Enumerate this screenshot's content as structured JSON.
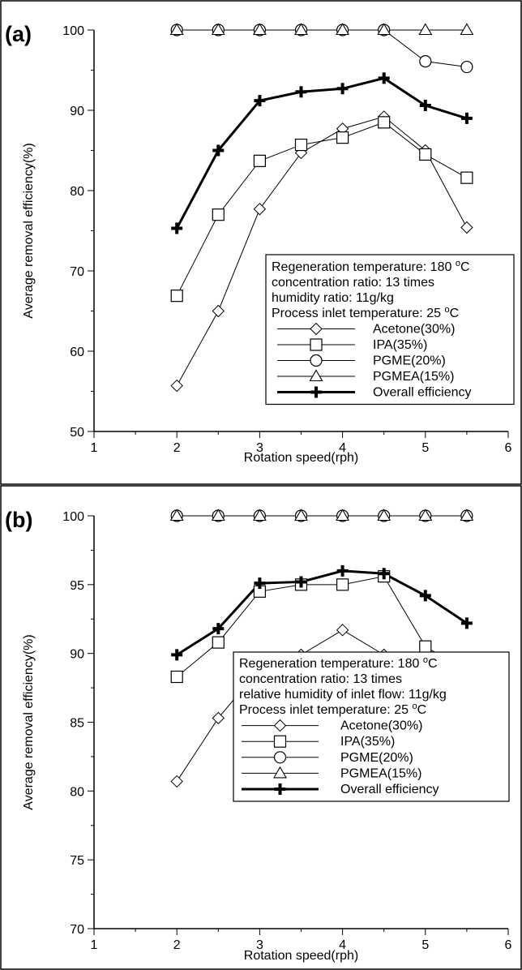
{
  "chart_data": [
    {
      "type": "line",
      "panel_label": "(a)",
      "xlabel": "Rotation speed(rph)",
      "ylabel": "Average removal efficiency(%)",
      "xlim": [
        1,
        6
      ],
      "ylim": [
        50,
        100
      ],
      "xticks": [
        1,
        2,
        3,
        4,
        5,
        6
      ],
      "yticks": [
        50,
        60,
        70,
        80,
        90,
        100
      ],
      "grid": false,
      "legend_position": "bottom-right",
      "legend_notes": [
        {
          "text": "Regeneration temperature: 180 ",
          "sup": "o",
          "tail": "C"
        },
        {
          "text": "concentration ratio: 13 times",
          "sup": "",
          "tail": ""
        },
        {
          "text": "humidity ratio: 11g/kg",
          "sup": "",
          "tail": ""
        },
        {
          "text": "Process inlet temperature: 25 ",
          "sup": "o",
          "tail": "C"
        }
      ],
      "x": [
        2,
        2.5,
        3,
        3.5,
        4,
        4.5,
        5,
        5.5
      ],
      "series": [
        {
          "name": "Acetone(30%)",
          "marker": "diamond",
          "color": "#000000",
          "bold": false,
          "values": [
            55.7,
            65.0,
            77.7,
            84.7,
            87.7,
            89.2,
            85.0,
            75.4
          ]
        },
        {
          "name": "IPA(35%)",
          "marker": "square",
          "color": "#000000",
          "bold": false,
          "values": [
            66.9,
            77.0,
            83.7,
            85.7,
            86.6,
            88.5,
            84.5,
            81.6
          ]
        },
        {
          "name": "PGME(20%)",
          "marker": "circle",
          "color": "#000000",
          "bold": false,
          "values": [
            100,
            100,
            100,
            100,
            100,
            100,
            96.1,
            95.4
          ]
        },
        {
          "name": "PGMEA(15%)",
          "marker": "triangle",
          "color": "#000000",
          "bold": false,
          "values": [
            100,
            100,
            100,
            100,
            100,
            100,
            100,
            100
          ]
        },
        {
          "name": "Overall efficiency",
          "marker": "cross",
          "color": "#000000",
          "bold": true,
          "values": [
            75.3,
            85.0,
            91.2,
            92.3,
            92.7,
            94.0,
            90.6,
            89.0
          ]
        }
      ]
    },
    {
      "type": "line",
      "panel_label": "(b)",
      "xlabel": "Rotation speed(rph)",
      "ylabel": "Average removal efficiency(%)",
      "xlim": [
        1,
        6
      ],
      "ylim": [
        70,
        100
      ],
      "xticks": [
        1,
        2,
        3,
        4,
        5,
        6
      ],
      "yticks": [
        70,
        75,
        80,
        85,
        90,
        95,
        100
      ],
      "grid": false,
      "legend_position": "bottom-right",
      "legend_notes": [
        {
          "text": "Regeneration temperature: 180 ",
          "sup": "o",
          "tail": "C"
        },
        {
          "text": "concentration ratio: 13 times",
          "sup": "",
          "tail": ""
        },
        {
          "text": "relative humidity of inlet flow: 11g/kg",
          "sup": "",
          "tail": ""
        },
        {
          "text": "Process inlet temperature: 25 ",
          "sup": "o",
          "tail": "C"
        }
      ],
      "x": [
        2,
        2.5,
        3,
        3.5,
        4,
        4.5,
        5,
        5.5
      ],
      "series": [
        {
          "name": "Acetone(30%)",
          "marker": "diamond",
          "color": "#000000",
          "bold": false,
          "values": [
            80.7,
            85.3,
            88.9,
            89.9,
            91.7,
            89.9,
            87.4,
            85.4
          ]
        },
        {
          "name": "IPA(35%)",
          "marker": "square",
          "color": "#000000",
          "bold": false,
          "values": [
            88.3,
            90.8,
            94.5,
            95.0,
            95.0,
            95.6,
            90.5,
            88.7
          ]
        },
        {
          "name": "PGME(20%)",
          "marker": "circle",
          "color": "#000000",
          "bold": false,
          "values": [
            100,
            100,
            100,
            100,
            100,
            100,
            100,
            100
          ]
        },
        {
          "name": "PGMEA(15%)",
          "marker": "triangle",
          "color": "#000000",
          "bold": false,
          "values": [
            100,
            100,
            100,
            100,
            100,
            100,
            100,
            100
          ]
        },
        {
          "name": "Overall efficiency",
          "marker": "cross",
          "color": "#000000",
          "bold": true,
          "values": [
            89.9,
            91.8,
            95.1,
            95.2,
            96.0,
            95.8,
            94.2,
            92.2
          ]
        }
      ]
    }
  ]
}
